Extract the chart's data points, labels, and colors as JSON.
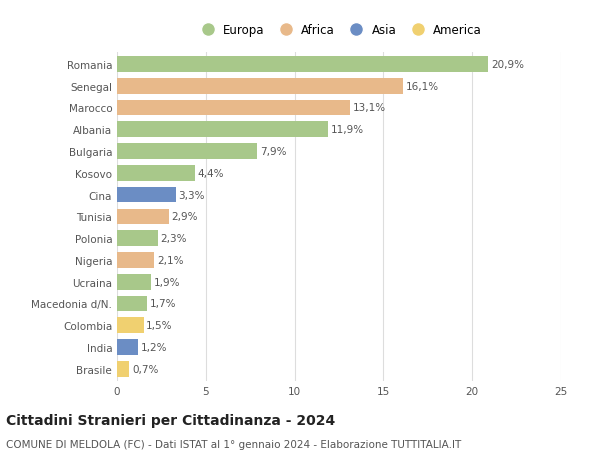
{
  "countries": [
    "Romania",
    "Senegal",
    "Marocco",
    "Albania",
    "Bulgaria",
    "Kosovo",
    "Cina",
    "Tunisia",
    "Polonia",
    "Nigeria",
    "Ucraina",
    "Macedonia d/N.",
    "Colombia",
    "India",
    "Brasile"
  ],
  "values": [
    20.9,
    16.1,
    13.1,
    11.9,
    7.9,
    4.4,
    3.3,
    2.9,
    2.3,
    2.1,
    1.9,
    1.7,
    1.5,
    1.2,
    0.7
  ],
  "labels": [
    "20,9%",
    "16,1%",
    "13,1%",
    "11,9%",
    "7,9%",
    "4,4%",
    "3,3%",
    "2,9%",
    "2,3%",
    "2,1%",
    "1,9%",
    "1,7%",
    "1,5%",
    "1,2%",
    "0,7%"
  ],
  "continents": [
    "Europa",
    "Africa",
    "Africa",
    "Europa",
    "Europa",
    "Europa",
    "Asia",
    "Africa",
    "Europa",
    "Africa",
    "Europa",
    "Europa",
    "America",
    "Asia",
    "America"
  ],
  "colors": {
    "Europa": "#a8c88a",
    "Africa": "#e8b98a",
    "Asia": "#6b8dc4",
    "America": "#f0d070"
  },
  "title": "Cittadini Stranieri per Cittadinanza - 2024",
  "subtitle": "COMUNE DI MELDOLA (FC) - Dati ISTAT al 1° gennaio 2024 - Elaborazione TUTTITALIA.IT",
  "xlim": [
    0,
    25
  ],
  "xticks": [
    0,
    5,
    10,
    15,
    20,
    25
  ],
  "background_color": "#ffffff",
  "grid_color": "#dddddd",
  "bar_height": 0.72,
  "label_fontsize": 7.5,
  "tick_fontsize": 7.5,
  "title_fontsize": 10,
  "subtitle_fontsize": 7.5,
  "legend_order": [
    "Europa",
    "Africa",
    "Asia",
    "America"
  ]
}
